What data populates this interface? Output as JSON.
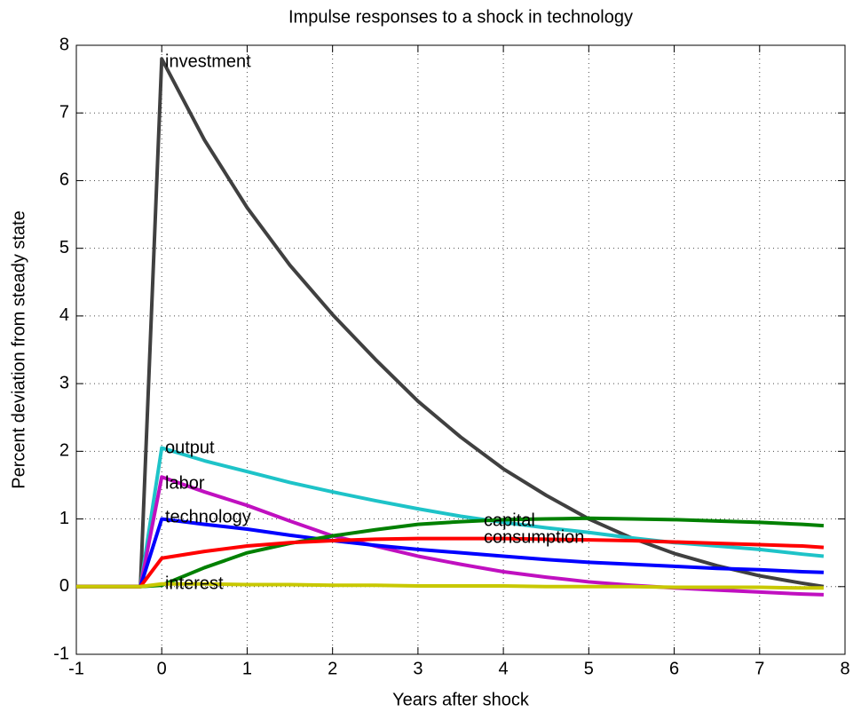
{
  "chart_data": {
    "type": "line",
    "title": "Impulse responses to a shock in technology",
    "x_label": "Years after shock",
    "y_label": "Percent deviation from steady state",
    "x": [
      -1,
      -0.25,
      0,
      0.5,
      1,
      1.5,
      2,
      2.5,
      3,
      3.5,
      4,
      4.5,
      5,
      5.5,
      6,
      6.5,
      7,
      7.5,
      7.75
    ],
    "series": [
      {
        "name": "investment",
        "color": "#404040",
        "values": [
          0,
          0,
          7.8,
          6.6,
          5.6,
          4.75,
          4.02,
          3.36,
          2.74,
          2.21,
          1.74,
          1.35,
          1.0,
          0.72,
          0.49,
          0.31,
          0.16,
          0.05,
          0.0
        ]
      },
      {
        "name": "output",
        "color": "#1ec3c8",
        "values": [
          0,
          0,
          2.05,
          1.86,
          1.7,
          1.54,
          1.4,
          1.27,
          1.15,
          1.04,
          0.95,
          0.87,
          0.8,
          0.72,
          0.65,
          0.6,
          0.55,
          0.48,
          0.45
        ]
      },
      {
        "name": "labor",
        "color": "#c010c0",
        "values": [
          0,
          0,
          1.62,
          1.4,
          1.2,
          0.97,
          0.75,
          0.6,
          0.45,
          0.33,
          0.22,
          0.14,
          0.07,
          0.02,
          -0.02,
          -0.05,
          -0.08,
          -0.11,
          -0.12
        ]
      },
      {
        "name": "technology",
        "color": "#0000ff",
        "values": [
          0,
          0,
          1.0,
          0.92,
          0.85,
          0.76,
          0.68,
          0.61,
          0.55,
          0.5,
          0.45,
          0.4,
          0.36,
          0.33,
          0.3,
          0.27,
          0.25,
          0.22,
          0.21
        ]
      },
      {
        "name": "capital",
        "color": "#008000",
        "values": [
          0,
          0,
          0.02,
          0.28,
          0.5,
          0.64,
          0.75,
          0.84,
          0.92,
          0.96,
          0.99,
          1.0,
          1.01,
          1.0,
          0.99,
          0.97,
          0.95,
          0.92,
          0.9
        ]
      },
      {
        "name": "consumption",
        "color": "#ff0000",
        "values": [
          0,
          0,
          0.42,
          0.52,
          0.6,
          0.65,
          0.68,
          0.7,
          0.71,
          0.71,
          0.71,
          0.7,
          0.69,
          0.68,
          0.66,
          0.64,
          0.62,
          0.6,
          0.58
        ]
      },
      {
        "name": "interest",
        "color": "#c8c800",
        "values": [
          0,
          0,
          0.04,
          0.04,
          0.03,
          0.03,
          0.02,
          0.02,
          0.01,
          0.01,
          0.01,
          0,
          0,
          0,
          -0.01,
          -0.01,
          -0.01,
          -0.02,
          -0.02
        ]
      }
    ],
    "xlim": [
      -1,
      8
    ],
    "xticks": [
      -1,
      0,
      1,
      2,
      3,
      4,
      5,
      6,
      7,
      8
    ],
    "ylim": [
      -1,
      8
    ],
    "yticks": [
      -1,
      0,
      1,
      2,
      3,
      4,
      5,
      6,
      7,
      8
    ],
    "grid": true
  }
}
